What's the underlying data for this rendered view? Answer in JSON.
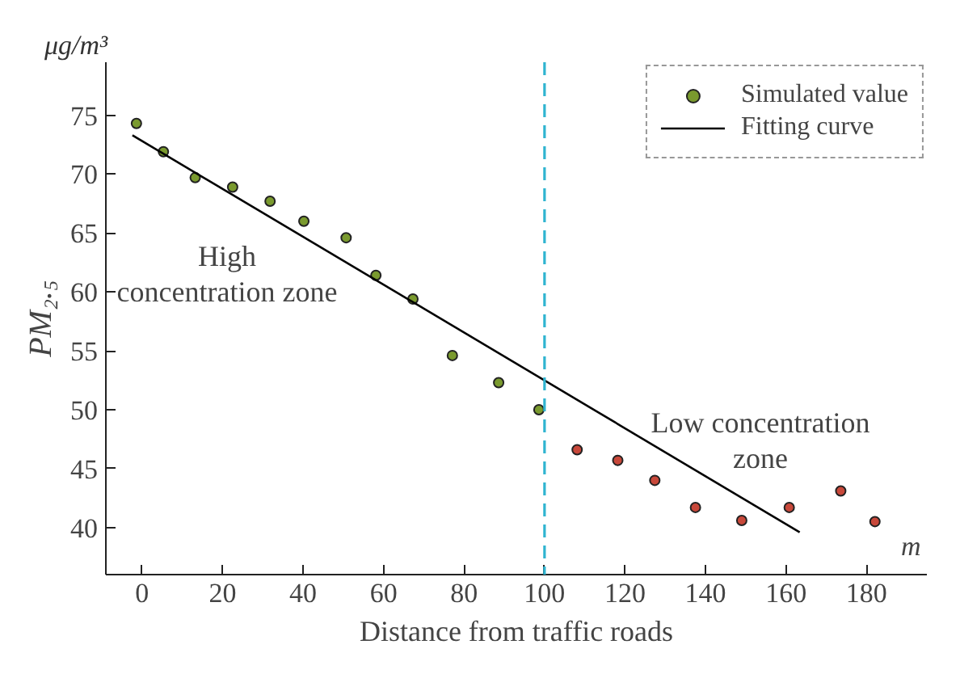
{
  "chart_data": {
    "type": "scatter",
    "xlabel": "Distance from traffic roads",
    "ylabel": "PM₂.₅",
    "annotations": [
      "μg/m³",
      "m",
      "High\nconcentration zone",
      "Low concentration\nzone"
    ],
    "xlim": [
      -9,
      195
    ],
    "ylim": [
      36,
      79.5
    ],
    "xticks": [
      0,
      20,
      40,
      60,
      80,
      100,
      120,
      140,
      160,
      180
    ],
    "yticks": [
      40,
      45,
      50,
      55,
      60,
      65,
      70,
      75
    ],
    "series": [
      {
        "name": "Simulated value",
        "marker": "circle",
        "x": [
          -1.4,
          5.3,
          13.2,
          22.5,
          31.8,
          40.2,
          50.7,
          58.1,
          67.3,
          77.1,
          88.6,
          98.6,
          108.1,
          118.2,
          127.4,
          137.5,
          149,
          160.8,
          173.6,
          182.1
        ],
        "values": [
          74.3,
          71.9,
          69.7,
          68.9,
          67.7,
          66.0,
          64.6,
          61.4,
          59.4,
          54.6,
          52.3,
          50.0,
          46.6,
          45.7,
          44.0,
          41.7,
          40.6,
          41.7,
          43.1,
          40.5
        ],
        "colors": [
          "#7a9a2e",
          "#7a9a2e",
          "#7a9a2e",
          "#7a9a2e",
          "#7a9a2e",
          "#7a9a2e",
          "#7a9a2e",
          "#7a9a2e",
          "#7a9a2e",
          "#7a9a2e",
          "#7a9a2e",
          "#7a9a2e",
          "#c8483a",
          "#c8483a",
          "#c8483a",
          "#c8483a",
          "#c8483a",
          "#c8483a",
          "#c8483a",
          "#c8483a"
        ]
      },
      {
        "name": "Fitting curve",
        "type": "line",
        "x": [
          -2.4,
          163.4
        ],
        "values": [
          73.3,
          39.6
        ],
        "color": "#000000"
      }
    ],
    "ref_lines": [
      {
        "axis": "x",
        "value": 100,
        "color": "#2fb4d0",
        "line_style": "dashed"
      }
    ],
    "legend": "top right",
    "grid": false
  }
}
